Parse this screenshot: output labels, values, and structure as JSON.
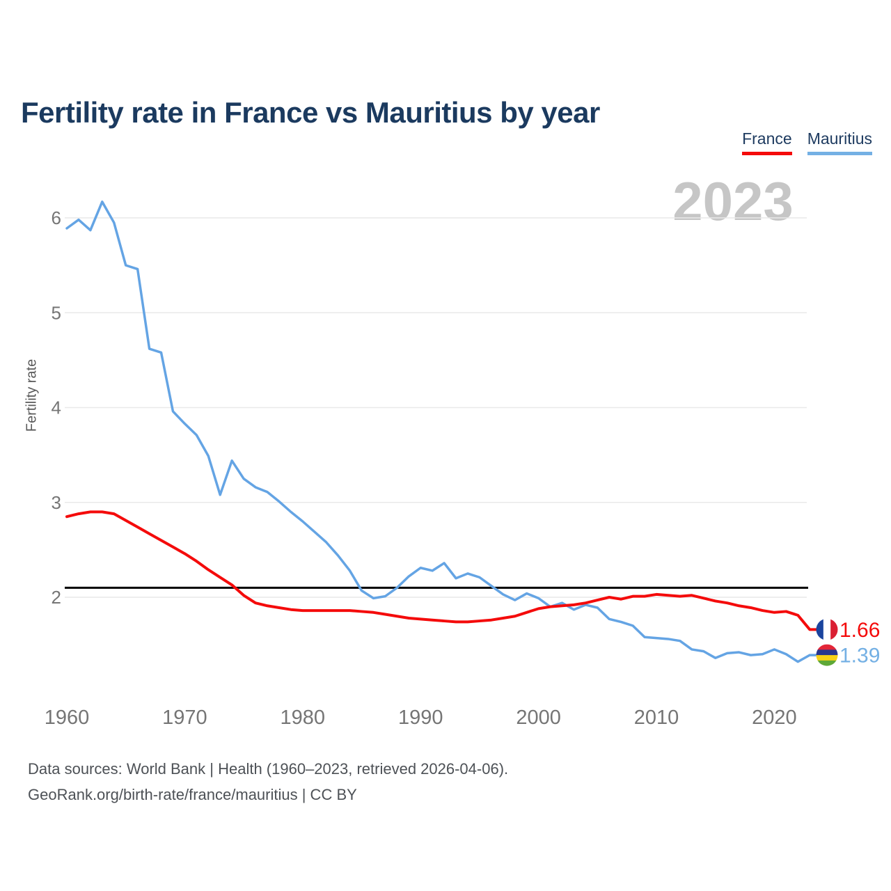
{
  "page": {
    "background": "#ffffff"
  },
  "header": {
    "title": "Fertility rate in France vs Mauritius by year"
  },
  "legend": {
    "items": [
      {
        "label": "France",
        "color": "#f40b0b"
      },
      {
        "label": "Mauritius",
        "color": "#74b0e4"
      }
    ]
  },
  "watermark": {
    "text": "2023",
    "color": "#c6c6c6"
  },
  "chart_data": {
    "type": "line",
    "title": "Fertility rate in France vs Mauritius by year",
    "xlabel": "",
    "ylabel": "Fertility rate",
    "grid": true,
    "legend_position": "top-right",
    "xlim": [
      1960,
      2023
    ],
    "ylim": [
      1.2,
      6.4
    ],
    "xticks": [
      1960,
      1970,
      1980,
      1990,
      2000,
      2010,
      2020
    ],
    "yticks": [
      2,
      3,
      4,
      5,
      6
    ],
    "reference_line": {
      "value": 2.1,
      "color": "#000000"
    },
    "x": [
      1960,
      1961,
      1962,
      1963,
      1964,
      1965,
      1966,
      1967,
      1968,
      1969,
      1970,
      1971,
      1972,
      1973,
      1974,
      1975,
      1976,
      1977,
      1978,
      1979,
      1980,
      1981,
      1982,
      1983,
      1984,
      1985,
      1986,
      1987,
      1988,
      1989,
      1990,
      1991,
      1992,
      1993,
      1994,
      1995,
      1996,
      1997,
      1998,
      1999,
      2000,
      2001,
      2002,
      2003,
      2004,
      2005,
      2006,
      2007,
      2008,
      2009,
      2010,
      2011,
      2012,
      2013,
      2014,
      2015,
      2016,
      2017,
      2018,
      2019,
      2020,
      2021,
      2022,
      2023
    ],
    "series": [
      {
        "name": "France",
        "line_color": "#f40b0b",
        "label_color": "#f40b0b",
        "end_label": "1.66",
        "flag": {
          "type": "vertical",
          "colors": [
            "#1b449e",
            "#ffffff",
            "#da1f33"
          ]
        },
        "values": [
          2.85,
          2.88,
          2.9,
          2.9,
          2.88,
          2.81,
          2.74,
          2.67,
          2.6,
          2.53,
          2.46,
          2.38,
          2.29,
          2.21,
          2.13,
          2.02,
          1.94,
          1.91,
          1.89,
          1.87,
          1.86,
          1.86,
          1.86,
          1.86,
          1.86,
          1.85,
          1.84,
          1.82,
          1.8,
          1.78,
          1.77,
          1.76,
          1.75,
          1.74,
          1.74,
          1.75,
          1.76,
          1.78,
          1.8,
          1.84,
          1.88,
          1.9,
          1.91,
          1.92,
          1.94,
          1.97,
          2.0,
          1.98,
          2.01,
          2.01,
          2.03,
          2.02,
          2.01,
          2.02,
          1.99,
          1.96,
          1.94,
          1.91,
          1.89,
          1.86,
          1.84,
          1.85,
          1.81,
          1.66
        ]
      },
      {
        "name": "Mauritius",
        "line_color": "#64a4e4",
        "label_color": "#74b0e4",
        "end_label": "1.39",
        "flag": {
          "type": "horizontal",
          "colors": [
            "#e32638",
            "#28368f",
            "#f7d117",
            "#5ea837"
          ]
        },
        "values": [
          5.89,
          5.98,
          5.87,
          6.17,
          5.95,
          5.5,
          5.46,
          4.62,
          4.58,
          3.96,
          3.83,
          3.71,
          3.49,
          3.08,
          3.44,
          3.25,
          3.16,
          3.11,
          3.01,
          2.9,
          2.8,
          2.69,
          2.58,
          2.44,
          2.28,
          2.07,
          1.99,
          2.01,
          2.1,
          2.22,
          2.31,
          2.28,
          2.36,
          2.2,
          2.25,
          2.21,
          2.12,
          2.03,
          1.97,
          2.04,
          1.99,
          1.9,
          1.94,
          1.87,
          1.92,
          1.89,
          1.77,
          1.74,
          1.7,
          1.58,
          1.57,
          1.56,
          1.54,
          1.45,
          1.43,
          1.36,
          1.41,
          1.42,
          1.39,
          1.4,
          1.45,
          1.4,
          1.32,
          1.39
        ]
      }
    ]
  },
  "footer": {
    "line1": "Data sources: World Bank | Health (1960–2023, retrieved 2026-04-06).",
    "line2": "GeoRank.org/birth-rate/france/mauritius | CC BY"
  }
}
